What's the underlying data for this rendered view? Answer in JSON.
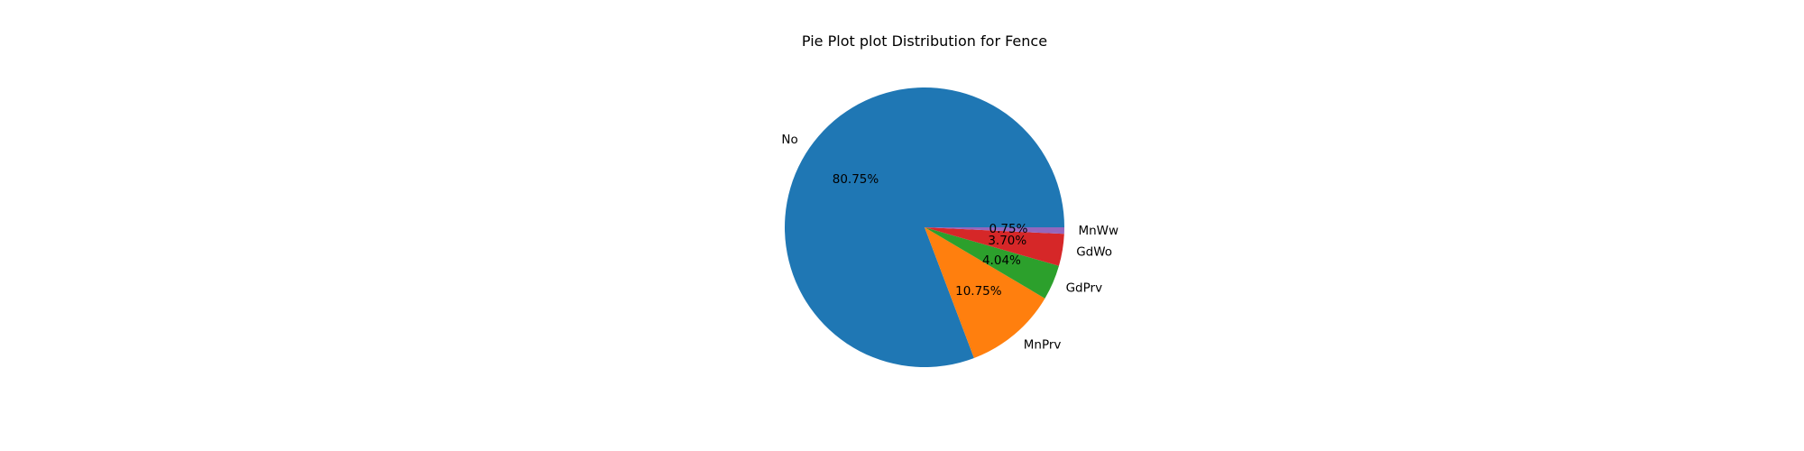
{
  "chart_data": {
    "type": "pie",
    "title": "Pie Plot plot Distribution for Fence",
    "categories": [
      "No",
      "MnPrv",
      "GdPrv",
      "GdWo",
      "MnWw"
    ],
    "values": [
      80.75,
      10.75,
      4.04,
      3.7,
      0.75
    ],
    "percent_labels": [
      "80.75%",
      "10.75%",
      "4.04%",
      "3.70%",
      "0.75%"
    ],
    "colors": [
      "#1f77b4",
      "#ff7f0e",
      "#2ca02c",
      "#d62728",
      "#9467bd"
    ],
    "start_angle_deg": 0,
    "direction": "counterclockwise"
  }
}
